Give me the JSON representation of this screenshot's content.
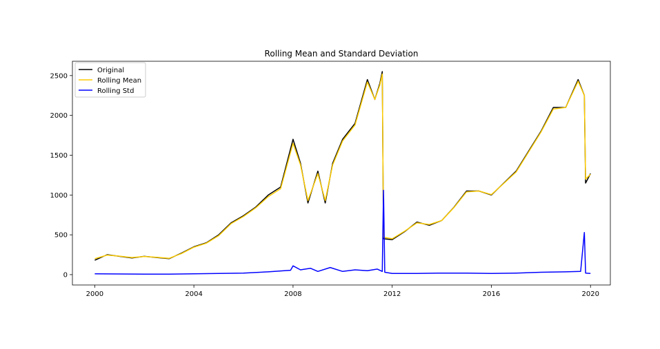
{
  "chart_data": {
    "type": "line",
    "title": "Rolling Mean and Standard Deviation",
    "xlabel": "",
    "ylabel": "",
    "xlim": [
      1999.1,
      2020.8
    ],
    "ylim": [
      -130,
      2680
    ],
    "x_ticks": [
      2000,
      2004,
      2008,
      2012,
      2016,
      2020
    ],
    "x_tick_labels": [
      "2000",
      "2004",
      "2008",
      "2012",
      "2016",
      "2020"
    ],
    "y_ticks": [
      0,
      500,
      1000,
      1500,
      2000,
      2500
    ],
    "y_tick_labels": [
      "0",
      "500",
      "1000",
      "1500",
      "2000",
      "2500"
    ],
    "grid": false,
    "legend_position": "upper-left",
    "series": [
      {
        "name": "Original",
        "color": "#000000",
        "x": [
          2000.0,
          2000.5,
          2001.0,
          2001.5,
          2002.0,
          2002.5,
          2003.0,
          2003.5,
          2004.0,
          2004.5,
          2005.0,
          2005.5,
          2006.0,
          2006.5,
          2007.0,
          2007.5,
          2008.0,
          2008.3,
          2008.6,
          2009.0,
          2009.3,
          2009.6,
          2010.0,
          2010.5,
          2011.0,
          2011.3,
          2011.5,
          2011.6,
          2011.65,
          2012.0,
          2012.5,
          2013.0,
          2013.5,
          2014.0,
          2014.5,
          2015.0,
          2015.5,
          2016.0,
          2016.5,
          2017.0,
          2017.5,
          2018.0,
          2018.5,
          2019.0,
          2019.5,
          2019.75,
          2019.8,
          2020.0
        ],
        "y": [
          180,
          250,
          230,
          210,
          230,
          215,
          200,
          270,
          350,
          400,
          500,
          650,
          740,
          850,
          1000,
          1100,
          1700,
          1400,
          900,
          1300,
          900,
          1400,
          1700,
          1900,
          2450,
          2200,
          2400,
          2550,
          450,
          440,
          540,
          660,
          620,
          680,
          850,
          1050,
          1050,
          1000,
          1150,
          1300,
          1550,
          1800,
          2100,
          2100,
          2450,
          2250,
          1150,
          1270
        ]
      },
      {
        "name": "Rolling Mean",
        "color": "#ffcc00",
        "x": [
          2000.0,
          2000.5,
          2001.0,
          2001.5,
          2002.0,
          2002.5,
          2003.0,
          2003.5,
          2004.0,
          2004.5,
          2005.0,
          2005.5,
          2006.0,
          2006.5,
          2007.0,
          2007.5,
          2008.0,
          2008.3,
          2008.6,
          2009.0,
          2009.3,
          2009.6,
          2010.0,
          2010.5,
          2011.0,
          2011.3,
          2011.5,
          2011.6,
          2011.65,
          2012.0,
          2012.5,
          2013.0,
          2013.5,
          2014.0,
          2014.5,
          2015.0,
          2015.5,
          2016.0,
          2016.5,
          2017.0,
          2017.5,
          2018.0,
          2018.5,
          2019.0,
          2019.5,
          2019.75,
          2019.8,
          2020.0
        ],
        "y": [
          200,
          245,
          232,
          215,
          228,
          218,
          205,
          265,
          345,
          395,
          490,
          640,
          730,
          840,
          980,
          1080,
          1650,
          1380,
          930,
          1270,
          930,
          1380,
          1680,
          1880,
          2420,
          2200,
          2380,
          2520,
          470,
          450,
          545,
          650,
          630,
          680,
          845,
          1040,
          1050,
          1005,
          1145,
          1290,
          1540,
          1790,
          2080,
          2100,
          2430,
          2250,
          1200,
          1260
        ]
      },
      {
        "name": "Rolling Std",
        "color": "#0000ff",
        "x": [
          2000.0,
          2001.0,
          2002.0,
          2003.0,
          2004.0,
          2005.0,
          2006.0,
          2007.0,
          2007.9,
          2008.0,
          2008.3,
          2008.7,
          2009.0,
          2009.5,
          2010.0,
          2010.5,
          2011.0,
          2011.4,
          2011.6,
          2011.65,
          2011.7,
          2012.0,
          2013.0,
          2014.0,
          2015.0,
          2016.0,
          2017.0,
          2018.0,
          2019.0,
          2019.6,
          2019.75,
          2019.8,
          2020.0
        ],
        "y": [
          10,
          8,
          7,
          6,
          10,
          15,
          20,
          35,
          55,
          110,
          60,
          80,
          40,
          90,
          40,
          60,
          50,
          70,
          40,
          1060,
          30,
          15,
          15,
          20,
          20,
          15,
          20,
          30,
          35,
          40,
          530,
          20,
          15
        ]
      }
    ]
  }
}
